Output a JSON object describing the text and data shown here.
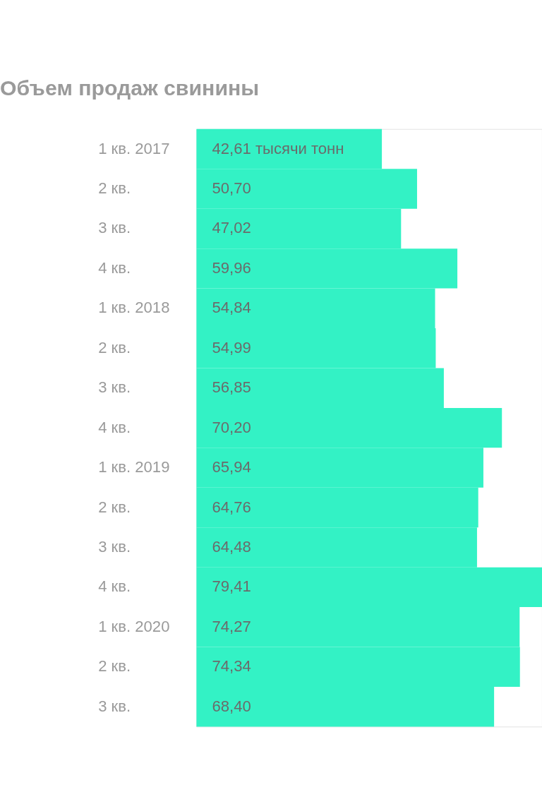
{
  "chart_data": {
    "type": "bar",
    "orientation": "horizontal",
    "title": "Объем продаж свинины",
    "categories": [
      "1 кв. 2017",
      "2 кв.",
      "3 кв.",
      "4 кв.",
      "1 кв. 2018",
      "2 кв.",
      "3 кв.",
      "4 кв.",
      "1 кв. 2019",
      "2 кв.",
      "3 кв.",
      "4 кв.",
      "1 кв. 2020",
      "2 кв.",
      "3 кв."
    ],
    "values": [
      42.61,
      50.7,
      47.02,
      59.96,
      54.84,
      54.99,
      56.85,
      70.2,
      65.94,
      64.76,
      64.48,
      79.41,
      74.27,
      74.34,
      68.4
    ],
    "value_labels": [
      "42,61 тысячи тонн",
      "50,70",
      "47,02",
      "59,96",
      "54,84",
      "54,99",
      "56,85",
      "70,20",
      "65,94",
      "64,76",
      "64,48",
      "79,41",
      "74,27",
      "74,34",
      "68,40"
    ],
    "color": "#33f2c5"
  }
}
